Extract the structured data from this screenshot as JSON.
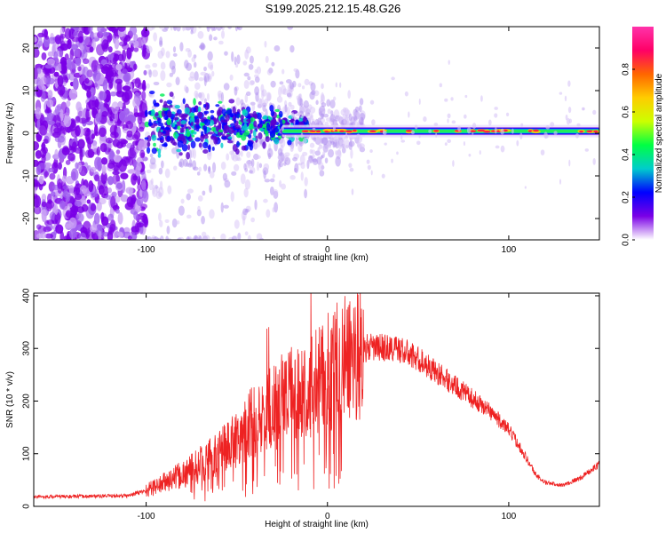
{
  "figure": {
    "title": "S199.2025.212.15.48.G26"
  },
  "chart_data": [
    {
      "type": "heatmap",
      "xlabel": "Height of straight line (km)",
      "ylabel": "Frequency (Hz)",
      "xlim": [
        -162,
        150
      ],
      "ylim": [
        -25,
        25
      ],
      "xticks": [
        -100,
        0,
        100
      ],
      "yticks": [
        -20,
        -10,
        0,
        10,
        20
      ],
      "colorbar": {
        "label": "Normalized spectral amplitude",
        "range": [
          0,
          1
        ],
        "ticks": [
          0.0,
          0.2,
          0.4,
          0.6,
          0.8
        ],
        "tick_labels": [
          "0.0",
          "0.2",
          "0.4",
          "0.6",
          "0.8"
        ],
        "colors": [
          "#ffffff",
          "#7a00e6",
          "#0000ff",
          "#00cccc",
          "#00ff44",
          "#ccff00",
          "#ffcc00",
          "#ff6600",
          "#ff0066",
          "#ff33aa"
        ]
      },
      "description_band": {
        "center_frequency_hz": 0.5,
        "strong_band_start_km": -25,
        "strong_band_end_km": 150
      }
    },
    {
      "type": "line",
      "xlabel": "Height of straight line (km)",
      "ylabel": "SNR (10 * v/v)",
      "xlim": [
        -162,
        150
      ],
      "ylim": [
        0,
        405
      ],
      "xticks": [
        -100,
        0,
        100
      ],
      "yticks": [
        0,
        100,
        200,
        300,
        400
      ],
      "series": [
        {
          "color": "#ee2222",
          "envelope": {
            "x": [
              -162,
              -110,
              -100,
              -90,
              -80,
              -70,
              -60,
              -50,
              -40,
              -30,
              -20,
              -10,
              0,
              10,
              20,
              30,
              40,
              50,
              60,
              70,
              80,
              90,
              100,
              105,
              110,
              115,
              120,
              130,
              140,
              150
            ],
            "y": [
              18,
              20,
              30,
              45,
              60,
              80,
              100,
              130,
              165,
              190,
              210,
              230,
              255,
              280,
              300,
              302,
              298,
              280,
              255,
              230,
              205,
              180,
              145,
              120,
              90,
              60,
              45,
              40,
              55,
              80
            ]
          }
        }
      ]
    }
  ]
}
